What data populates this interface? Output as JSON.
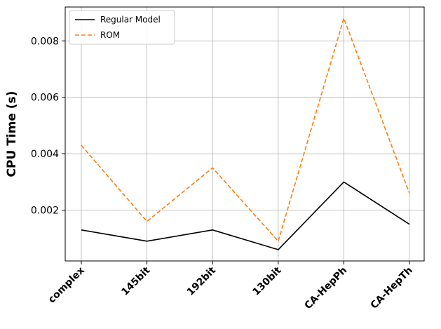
{
  "chart_data": {
    "type": "line",
    "categories": [
      "complex",
      "145bit",
      "192bit",
      "130bit",
      "CA-HepPh",
      "CA-HepTh"
    ],
    "series": [
      {
        "name": "Regular Model",
        "values": [
          0.0013,
          0.0009,
          0.0013,
          0.0006,
          0.003,
          0.0015
        ],
        "color": "#000000",
        "dash": "solid"
      },
      {
        "name": "ROM",
        "values": [
          0.0043,
          0.0016,
          0.0035,
          0.0009,
          0.0088,
          0.0026
        ],
        "color": "#ff7f0e",
        "dash": "dashed"
      }
    ],
    "title": "",
    "xlabel": "",
    "ylabel": "CPU Time (s)",
    "ylim": [
      0.0002,
      0.0092
    ],
    "yticks": [
      0.002,
      0.004,
      0.006,
      0.008
    ],
    "ytick_labels": [
      "0.002",
      "0.004",
      "0.006",
      "0.008"
    ],
    "grid": true,
    "legend": "top-left"
  }
}
